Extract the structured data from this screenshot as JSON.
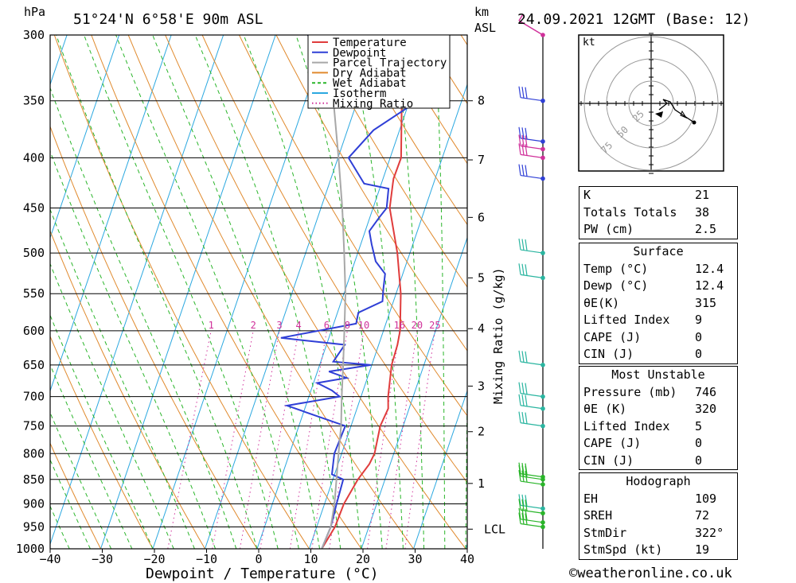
{
  "header": {
    "unit_hpa": "hPa",
    "location": "51°24'N  6°58'E  90m  ASL",
    "km": "km",
    "asl": "ASL",
    "datetime": "24.09.2021  12GMT  (Base: 12)"
  },
  "chart_data": {
    "type": "line",
    "title": "51°24'N 6°58'E 90m ASL",
    "xlabel": "Dewpoint / Temperature (°C)",
    "ylabel": "hPa",
    "xlim": [
      -40,
      40
    ],
    "ylim": [
      1000,
      300
    ],
    "x_ticks": [
      -40,
      -30,
      -20,
      -10,
      0,
      10,
      20,
      30,
      40
    ],
    "x_tick_labels": [
      "−40",
      "−30",
      "−20",
      "−10",
      "0",
      "10",
      "20",
      "30",
      "40"
    ],
    "p_ticks": [
      300,
      350,
      400,
      450,
      500,
      550,
      600,
      650,
      700,
      750,
      800,
      850,
      900,
      950,
      1000
    ],
    "km_ticks": [
      {
        "label": "8",
        "p": 350
      },
      {
        "label": "7",
        "p": 402
      },
      {
        "label": "6",
        "p": 460
      },
      {
        "label": "5",
        "p": 530
      },
      {
        "label": "4",
        "p": 597
      },
      {
        "label": "3",
        "p": 683
      },
      {
        "label": "2",
        "p": 760
      },
      {
        "label": "1",
        "p": 858
      },
      {
        "label": "LCL",
        "p": 955
      }
    ],
    "mixing_ratio_label": "Mixing Ratio (g/kg)",
    "mixing_ratio_values": [
      "1",
      "2",
      "3",
      "4",
      "6",
      "8",
      "10",
      "16",
      "20",
      "25"
    ],
    "mixing_ratio_values_num": [
      1,
      2,
      3,
      4,
      6,
      8,
      10,
      16,
      20,
      25
    ],
    "legend": [
      {
        "name": "Temperature",
        "color": "#e03c3c"
      },
      {
        "name": "Dewpoint",
        "color": "#2f3fd6"
      },
      {
        "name": "Parcel Trajectory",
        "color": "#a8a8a8"
      },
      {
        "name": "Dry Adiabat",
        "color": "#e08a2e"
      },
      {
        "name": "Wet Adiabat",
        "color": "#2ab52a"
      },
      {
        "name": "Isotherm",
        "color": "#2ba8e0"
      },
      {
        "name": "Mixing Ratio",
        "color": "#d0309a"
      }
    ],
    "series": [
      {
        "name": "Temperature",
        "color": "#e03c3c",
        "points": [
          [
            1000,
            12.4
          ],
          [
            950,
            13.5
          ],
          [
            900,
            13.7
          ],
          [
            850,
            14.8
          ],
          [
            820,
            16.0
          ],
          [
            800,
            16.3
          ],
          [
            750,
            15.6
          ],
          [
            720,
            16.0
          ],
          [
            700,
            15.2
          ],
          [
            650,
            13.8
          ],
          [
            620,
            13.6
          ],
          [
            600,
            13.2
          ],
          [
            550,
            10.9
          ],
          [
            500,
            7.6
          ],
          [
            450,
            3.2
          ],
          [
            425,
            2.2
          ],
          [
            420,
            2.0
          ],
          [
            400,
            2.1
          ],
          [
            350,
            -1.5
          ],
          [
            300,
            -2.3
          ]
        ]
      },
      {
        "name": "Dewpoint",
        "color": "#2f3fd6",
        "points": [
          [
            1000,
            12.4
          ],
          [
            950,
            12.7
          ],
          [
            900,
            12.3
          ],
          [
            850,
            12.0
          ],
          [
            840,
            9.5
          ],
          [
            800,
            8.6
          ],
          [
            750,
            8.9
          ],
          [
            715,
            -3.6
          ],
          [
            700,
            5.9
          ],
          [
            690,
            4.0
          ],
          [
            678,
            0.7
          ],
          [
            670,
            6.0
          ],
          [
            660,
            2.2
          ],
          [
            650,
            9.8
          ],
          [
            645,
            2.4
          ],
          [
            620,
            3.5
          ],
          [
            610,
            -9.2
          ],
          [
            590,
            4.3
          ],
          [
            575,
            4.0
          ],
          [
            560,
            7.9
          ],
          [
            545,
            7.3
          ],
          [
            525,
            6.6
          ],
          [
            510,
            4.0
          ],
          [
            490,
            2.1
          ],
          [
            475,
            0.8
          ],
          [
            460,
            1.8
          ],
          [
            450,
            2.6
          ],
          [
            430,
            1.7
          ],
          [
            425,
            -3.3
          ],
          [
            400,
            -8.0
          ],
          [
            375,
            -5.0
          ],
          [
            350,
            1.6
          ],
          [
            345,
            1.8
          ],
          [
            340,
            -14.8
          ],
          [
            300,
            -23.8
          ]
        ]
      },
      {
        "name": "Parcel Trajectory",
        "color": "#a8a8a8",
        "points": [
          [
            1000,
            12.4
          ],
          [
            950,
            12.7
          ],
          [
            900,
            11.9
          ],
          [
            850,
            10.7
          ],
          [
            800,
            9.4
          ],
          [
            750,
            8.1
          ],
          [
            700,
            6.3
          ],
          [
            650,
            4.5
          ],
          [
            600,
            2.5
          ],
          [
            550,
            0.3
          ],
          [
            500,
            -2.6
          ],
          [
            450,
            -5.9
          ],
          [
            400,
            -9.9
          ],
          [
            350,
            -14.6
          ],
          [
            300,
            -20.6
          ]
        ]
      }
    ],
    "wind_barbs": [
      {
        "p": 300,
        "color": "#d0309a",
        "type": "arrow"
      },
      {
        "p": 350,
        "color": "#2f3fd6",
        "type": "barb"
      },
      {
        "p": 385,
        "color": "#2f3fd6",
        "type": "barb"
      },
      {
        "p": 392,
        "color": "#d0309a",
        "type": "barb"
      },
      {
        "p": 400,
        "color": "#d0309a",
        "type": "barb"
      },
      {
        "p": 420,
        "color": "#2f3fd6",
        "type": "barb"
      },
      {
        "p": 500,
        "color": "#2ab5a0",
        "type": "barb"
      },
      {
        "p": 530,
        "color": "#2ab5a0",
        "type": "barb"
      },
      {
        "p": 650,
        "color": "#2ab5a0",
        "type": "barb"
      },
      {
        "p": 700,
        "color": "#2ab5a0",
        "type": "barb"
      },
      {
        "p": 720,
        "color": "#2ab5a0",
        "type": "barb"
      },
      {
        "p": 750,
        "color": "#2ab5a0",
        "type": "barb"
      },
      {
        "p": 845,
        "color": "#2ab52a",
        "type": "barb"
      },
      {
        "p": 850,
        "color": "#2ab52a",
        "type": "barb"
      },
      {
        "p": 860,
        "color": "#2ab52a",
        "type": "barb"
      },
      {
        "p": 910,
        "color": "#2ab5a0",
        "type": "barb"
      },
      {
        "p": 920,
        "color": "#2ab52a",
        "type": "barb"
      },
      {
        "p": 940,
        "color": "#2ab52a",
        "type": "barb"
      },
      {
        "p": 950,
        "color": "#2ab52a",
        "type": "barb"
      }
    ],
    "hodograph": {
      "unit": "kt",
      "rings": [
        25,
        50,
        75
      ],
      "ring_labels": [
        "25",
        "50",
        "75"
      ]
    }
  },
  "indices": {
    "rows": [
      {
        "k": "K",
        "v": "21"
      },
      {
        "k": "Totals Totals",
        "v": "38"
      },
      {
        "k": "PW (cm)",
        "v": "2.5"
      }
    ]
  },
  "surface": {
    "title": "Surface",
    "rows": [
      {
        "k": "Temp (°C)",
        "v": "12.4"
      },
      {
        "k": "Dewp (°C)",
        "v": "12.4"
      },
      {
        "k": "θE(K)",
        "v": "315"
      },
      {
        "k": "Lifted Index",
        "v": "9"
      },
      {
        "k": "CAPE (J)",
        "v": "0"
      },
      {
        "k": "CIN (J)",
        "v": "0"
      }
    ]
  },
  "most_unstable": {
    "title": "Most Unstable",
    "rows": [
      {
        "k": "Pressure (mb)",
        "v": "746"
      },
      {
        "k": "θE (K)",
        "v": "320"
      },
      {
        "k": "Lifted Index",
        "v": "5"
      },
      {
        "k": "CAPE (J)",
        "v": "0"
      },
      {
        "k": "CIN (J)",
        "v": "0"
      }
    ]
  },
  "hodograph_table": {
    "title": "Hodograph",
    "rows": [
      {
        "k": "EH",
        "v": "109"
      },
      {
        "k": "SREH",
        "v": "72"
      },
      {
        "k": "StmDir",
        "v": "322°"
      },
      {
        "k": "StmSpd (kt)",
        "v": "19"
      }
    ]
  },
  "footer": {
    "copyright": "©weatheronline.co.uk"
  }
}
